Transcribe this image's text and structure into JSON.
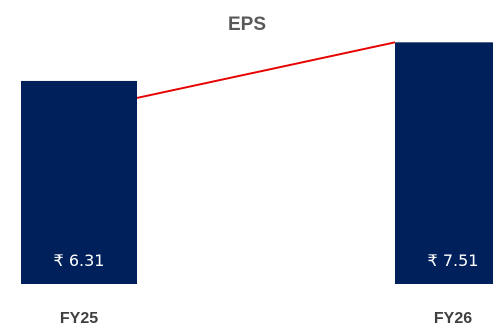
{
  "chart_data": {
    "type": "bar",
    "title": "EPS",
    "categories": [
      "FY25",
      "FY26"
    ],
    "values": [
      6.31,
      7.51
    ],
    "data_labels": [
      "₹ 6.31",
      "₹ 7.51"
    ],
    "xlabel": "",
    "ylabel": "",
    "ylim": [
      0,
      8.3
    ],
    "grid": false,
    "legend": "none",
    "bar_color": "#00205B",
    "connector_line_color": "#E60000",
    "title_color": "#595959",
    "label_color": "#404040"
  }
}
